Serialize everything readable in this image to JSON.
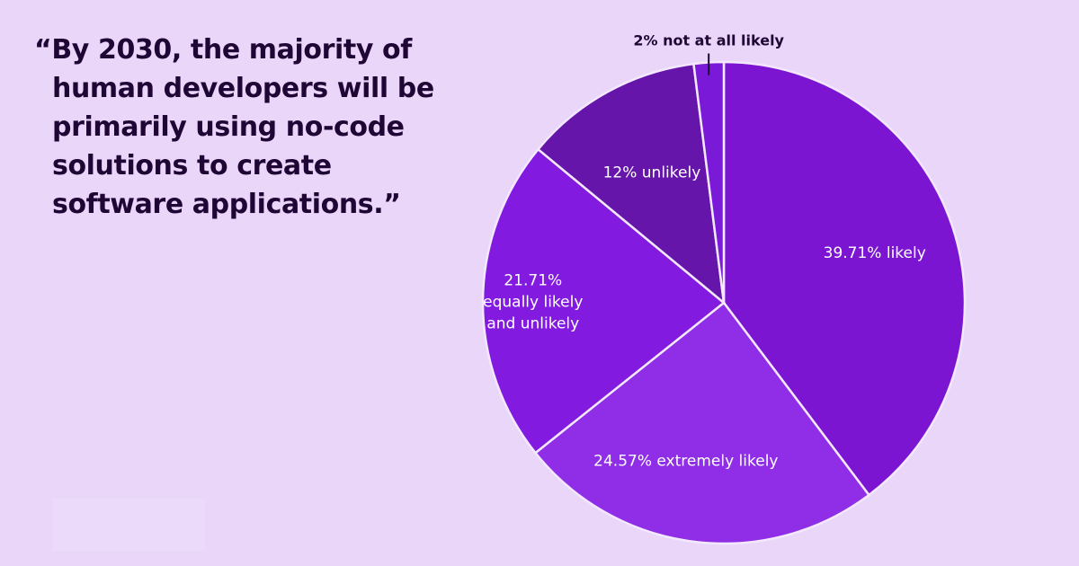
{
  "quote": {
    "lines": [
      "“By 2030, the majority of",
      "human developers will be",
      "primarily using no-code",
      "solutions to create",
      "software applications.”"
    ]
  },
  "chart_data": {
    "type": "pie",
    "title": "",
    "start_angle_deg": 0,
    "direction": "clockwise",
    "slices": [
      {
        "key": "likely",
        "value": 39.71,
        "label_lines": [
          "39.71% likely"
        ],
        "color": "#7b15d2",
        "label_inside": true
      },
      {
        "key": "extremely_likely",
        "value": 24.57,
        "label_lines": [
          "24.57% extremely likely"
        ],
        "color": "#8f2ee6",
        "label_inside": true
      },
      {
        "key": "equally",
        "value": 21.71,
        "label_lines": [
          "21.71%",
          "equally likely",
          "and unlikely"
        ],
        "color": "#821ae0",
        "label_inside": true
      },
      {
        "key": "unlikely",
        "value": 12,
        "label_lines": [
          "12% unlikely"
        ],
        "color": "#6615ab",
        "label_inside": true
      },
      {
        "key": "not_at_all",
        "value": 2,
        "label_lines": [
          "2% not at all likely"
        ],
        "color": "#7a1ad8",
        "label_inside": false
      }
    ]
  }
}
